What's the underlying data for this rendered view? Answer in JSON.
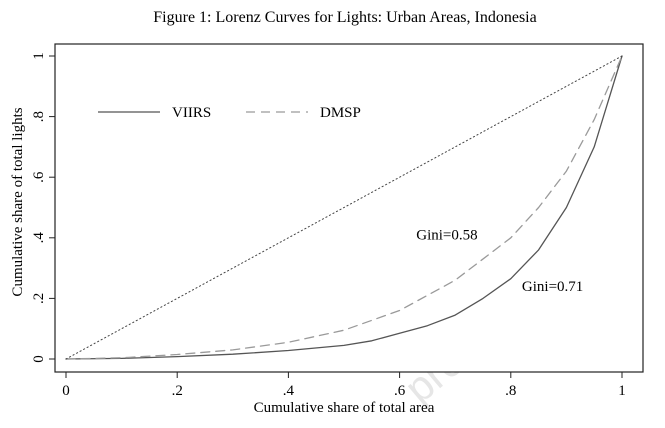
{
  "chart_data": {
    "type": "line",
    "title": "Figure 1: Lorenz Curves for Lights: Urban Areas, Indonesia",
    "xlabel": "Cumulative share of total area",
    "ylabel": "Cumulative share of total lights",
    "xlim": [
      0,
      1
    ],
    "ylim": [
      0,
      1
    ],
    "x_ticks": [
      {
        "value": 0,
        "label": "0"
      },
      {
        "value": 0.2,
        "label": ".2"
      },
      {
        "value": 0.4,
        "label": ".4"
      },
      {
        "value": 0.6,
        "label": ".6"
      },
      {
        "value": 0.8,
        "label": ".8"
      },
      {
        "value": 1,
        "label": "1"
      }
    ],
    "y_ticks": [
      {
        "value": 0,
        "label": "0"
      },
      {
        "value": 0.2,
        "label": ".2"
      },
      {
        "value": 0.4,
        "label": ".4"
      },
      {
        "value": 0.6,
        "label": ".6"
      },
      {
        "value": 0.8,
        "label": ".8"
      },
      {
        "value": 1,
        "label": "1"
      }
    ],
    "grid": false,
    "legend_position": "top-left inside",
    "series": [
      {
        "name": "VIIRS",
        "style": "solid",
        "color": "#555555",
        "points": [
          [
            0,
            0
          ],
          [
            0.1,
            0.002
          ],
          [
            0.2,
            0.008
          ],
          [
            0.3,
            0.016
          ],
          [
            0.4,
            0.028
          ],
          [
            0.5,
            0.045
          ],
          [
            0.55,
            0.06
          ],
          [
            0.6,
            0.085
          ],
          [
            0.65,
            0.11
          ],
          [
            0.7,
            0.145
          ],
          [
            0.75,
            0.2
          ],
          [
            0.8,
            0.265
          ],
          [
            0.85,
            0.36
          ],
          [
            0.9,
            0.5
          ],
          [
            0.95,
            0.7
          ],
          [
            1,
            1
          ]
        ]
      },
      {
        "name": "DMSP",
        "style": "dashed",
        "color": "#9a9a9a",
        "points": [
          [
            0,
            0
          ],
          [
            0.1,
            0.004
          ],
          [
            0.2,
            0.015
          ],
          [
            0.3,
            0.03
          ],
          [
            0.4,
            0.055
          ],
          [
            0.5,
            0.095
          ],
          [
            0.6,
            0.16
          ],
          [
            0.7,
            0.26
          ],
          [
            0.8,
            0.4
          ],
          [
            0.85,
            0.5
          ],
          [
            0.9,
            0.62
          ],
          [
            0.95,
            0.79
          ],
          [
            1,
            1
          ]
        ]
      },
      {
        "name": "",
        "style": "dotted",
        "color": "#444444",
        "points": [
          [
            0,
            0
          ],
          [
            1,
            1
          ]
        ]
      }
    ],
    "annotations": [
      {
        "text": "Gini=0.58",
        "x": 0.63,
        "y": 0.395
      },
      {
        "text": "Gini=0.71",
        "x": 0.82,
        "y": 0.225
      }
    ]
  },
  "watermark": "pre-proof",
  "colors": {
    "axis": "#222222",
    "frame": "#222222",
    "background": "#ffffff"
  }
}
